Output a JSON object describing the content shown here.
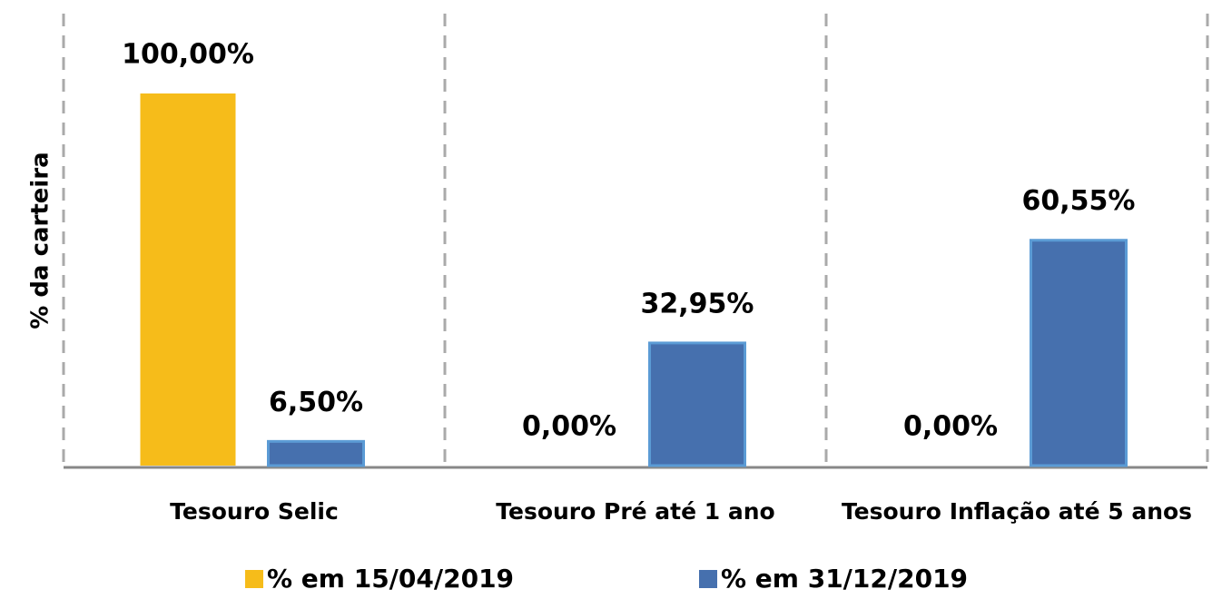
{
  "chart_data": {
    "type": "bar",
    "y_label": "% da carteira",
    "categories": [
      "Tesouro Selic",
      "Tesouro Pré até 1 ano",
      "Tesouro Inflação até 5 anos"
    ],
    "series": [
      {
        "name": "% em 15/04/2019",
        "color": "#f6bc1a",
        "values": [
          100,
          0,
          0
        ],
        "value_labels": [
          "100,00%",
          "0,00%",
          "0,00%"
        ]
      },
      {
        "name": "% em 31/12/2019",
        "color": "#4670ae",
        "values": [
          6.5,
          32.95,
          60.55
        ],
        "value_labels": [
          "6,50%",
          "32,95%",
          "60,55%"
        ]
      }
    ],
    "ylim": [
      0,
      120
    ],
    "legend": "bottom"
  }
}
